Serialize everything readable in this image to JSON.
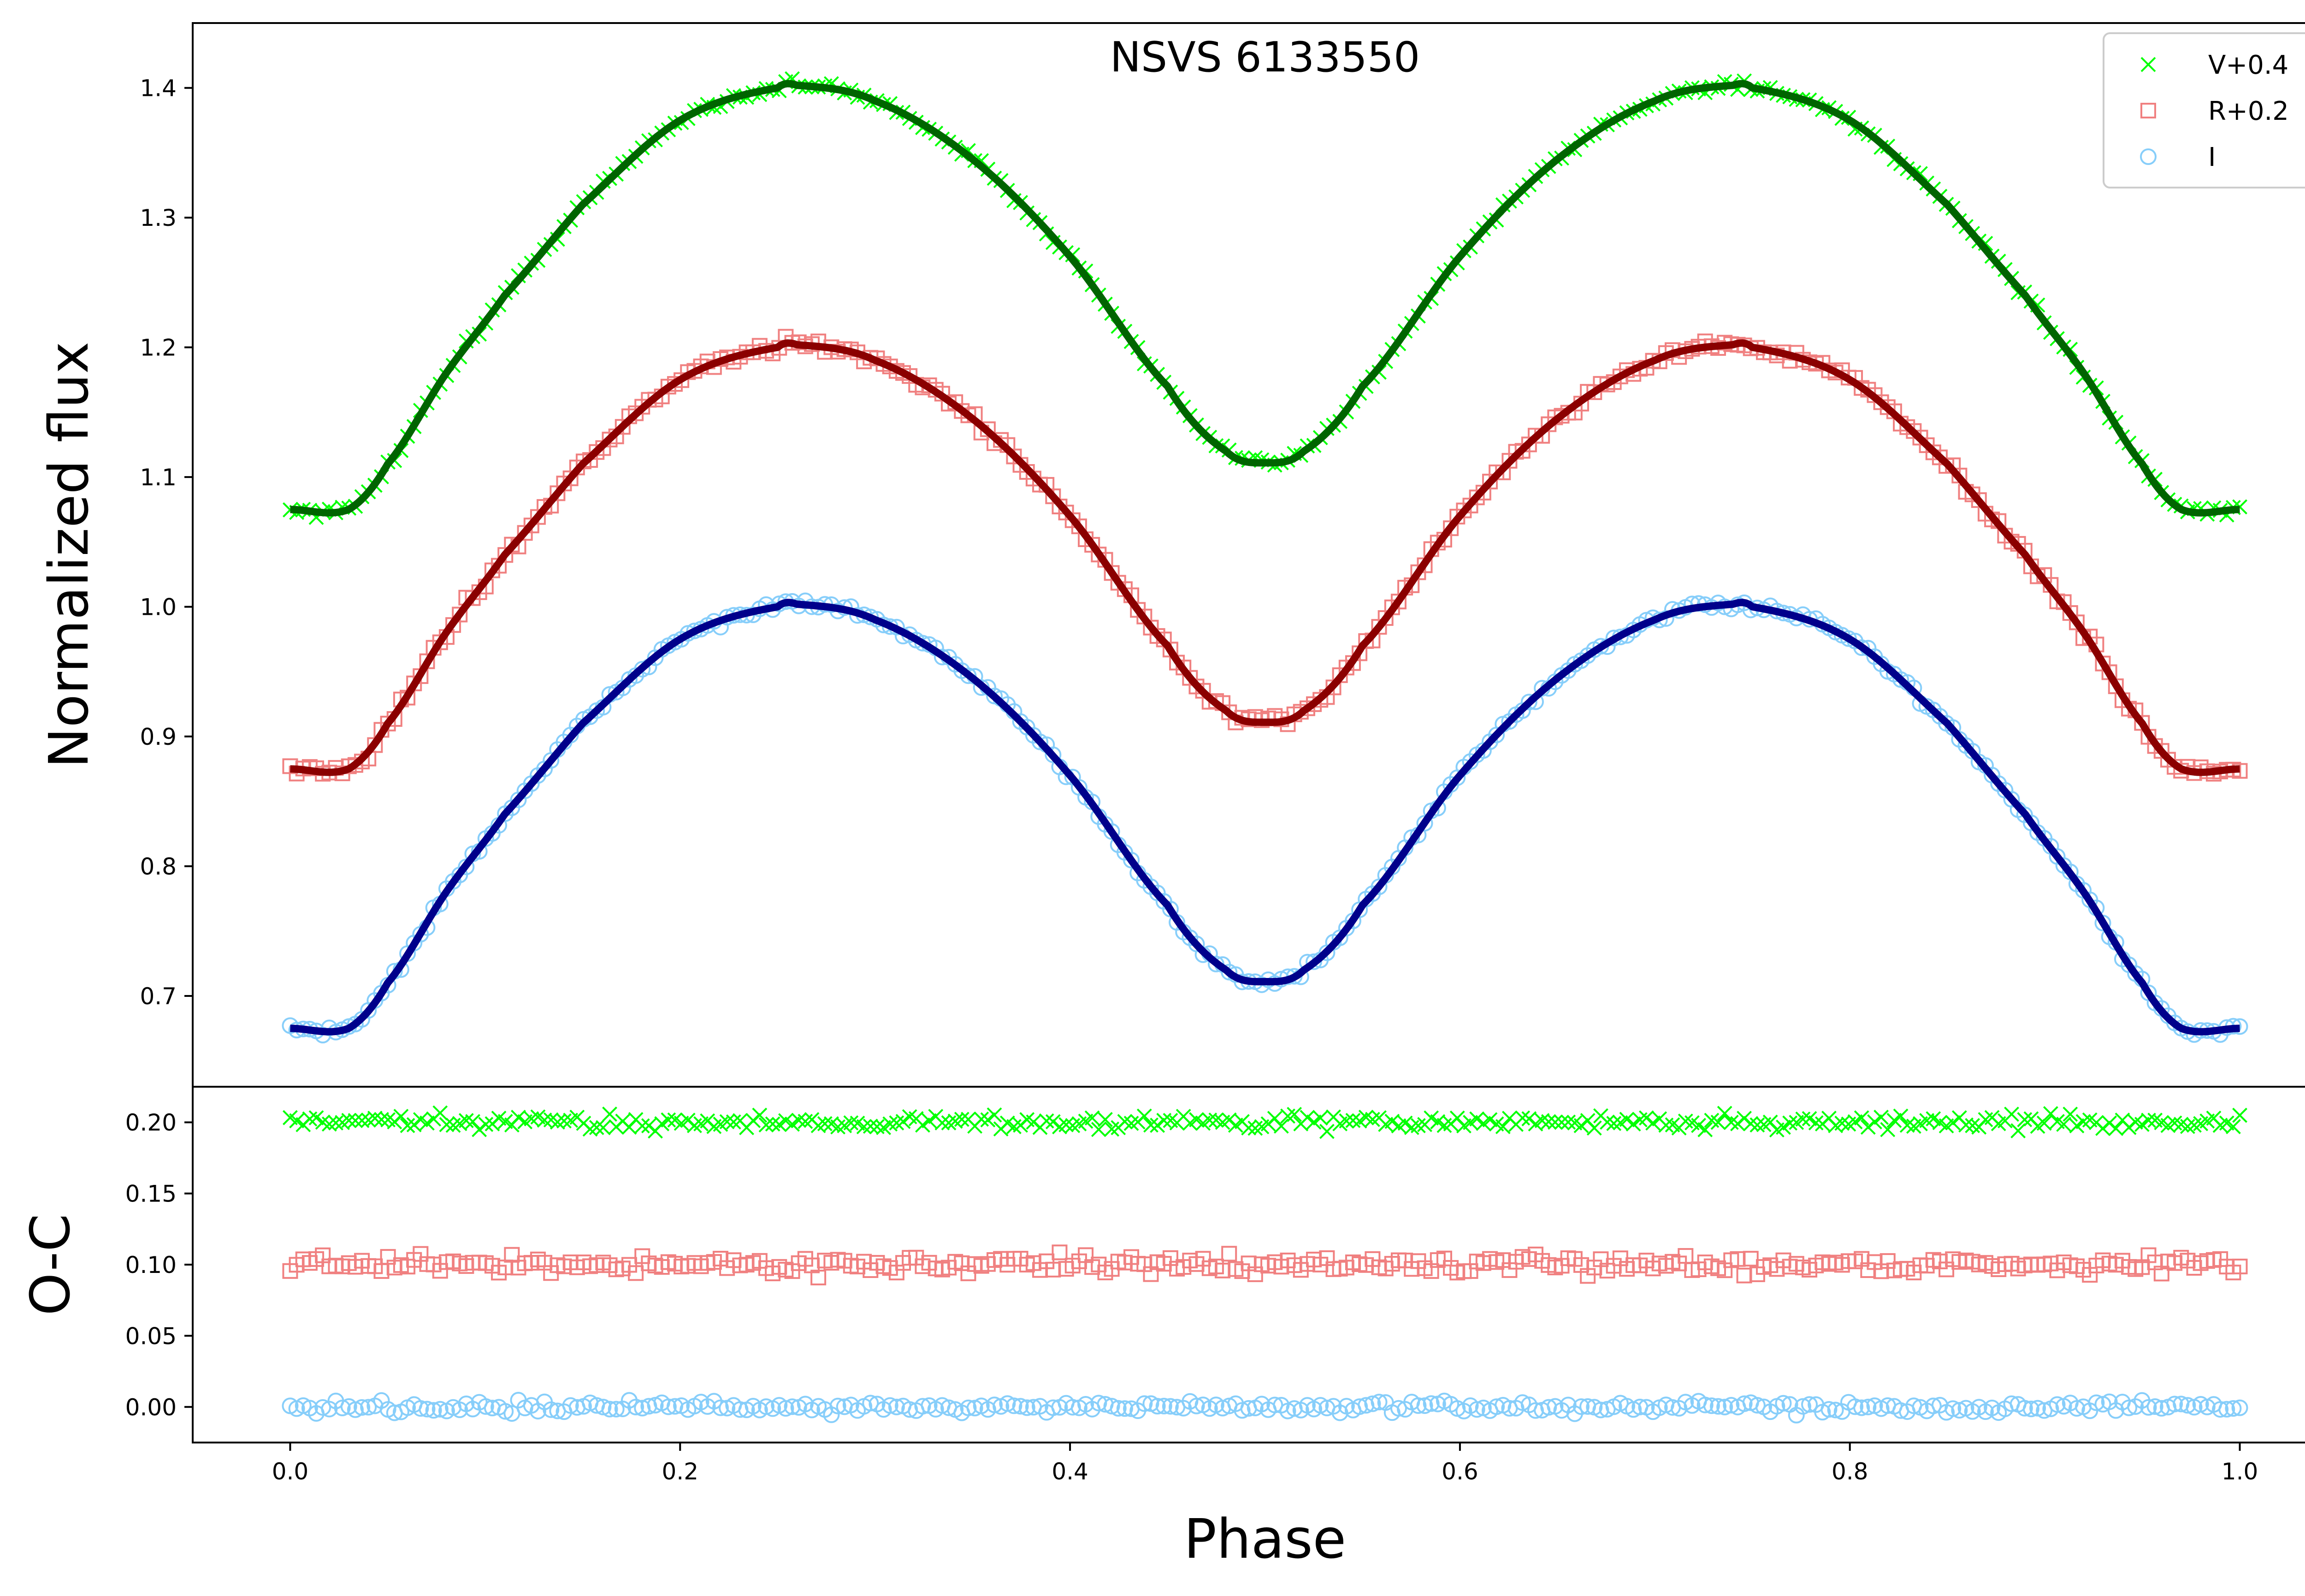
{
  "chart_data": {
    "type": "scatter",
    "title": "NSVS 6133550",
    "colors": {
      "V": "#00ff00",
      "R": "#f08080",
      "I": "#87cefa",
      "V_fit": "#006400",
      "R_fit": "#8b0000",
      "I_fit": "#00008b"
    },
    "legend_placement": "top-right",
    "legend": [
      {
        "label": "V+0.4",
        "marker": "x",
        "color": "#00ff00"
      },
      {
        "label": "R+0.2",
        "marker": "square",
        "color": "#f08080"
      },
      {
        "label": "I",
        "marker": "circle",
        "color": "#87cefa"
      }
    ],
    "panels": {
      "light_curve": {
        "ylabel": "Normalized flux",
        "ylim": [
          0.63,
          1.45
        ],
        "yticks": [
          "0.7",
          "0.8",
          "0.9",
          "1.0",
          "1.1",
          "1.2",
          "1.3",
          "1.4"
        ],
        "series": [
          {
            "name": "V+0.4",
            "marker": "x",
            "offset": 0.4,
            "noise": 0.004
          },
          {
            "name": "R+0.2",
            "marker": "square",
            "offset": 0.2,
            "noise": 0.0045
          },
          {
            "name": "I",
            "marker": "circle",
            "offset": 0.0,
            "noise": 0.0035
          }
        ],
        "model": {
          "phase": [
            0.0,
            0.03,
            0.05,
            0.08,
            0.11,
            0.15,
            0.2,
            0.25,
            0.26,
            0.3,
            0.35,
            0.4,
            0.45,
            0.48,
            0.5,
            0.52,
            0.55,
            0.6,
            0.65,
            0.7,
            0.74,
            0.75,
            0.8,
            0.85,
            0.89,
            0.92,
            0.95,
            0.97,
            1.0
          ],
          "I_flux": [
            0.675,
            0.675,
            0.71,
            0.78,
            0.84,
            0.91,
            0.975,
            1.0,
            1.002,
            0.99,
            0.945,
            0.87,
            0.77,
            0.72,
            0.711,
            0.72,
            0.77,
            0.87,
            0.945,
            0.99,
            1.002,
            1.0,
            0.975,
            0.91,
            0.84,
            0.78,
            0.71,
            0.675,
            0.675
          ]
        }
      },
      "residuals": {
        "ylabel": "O-C",
        "ylim": [
          -0.025,
          0.225
        ],
        "yticks": [
          "0.00",
          "0.05",
          "0.10",
          "0.15",
          "0.20"
        ],
        "series": [
          {
            "name": "V+0.4",
            "marker": "x",
            "level": 0.2,
            "noise": 0.005
          },
          {
            "name": "R+0.2",
            "marker": "square",
            "level": 0.1,
            "noise": 0.006
          },
          {
            "name": "I",
            "marker": "circle",
            "level": 0.0,
            "noise": 0.004
          }
        ]
      }
    },
    "xlabel": "Phase",
    "xlim": [
      -0.05,
      1.05
    ],
    "xticks": [
      "0.0",
      "0.2",
      "0.4",
      "0.6",
      "0.8",
      "1.0"
    ]
  }
}
